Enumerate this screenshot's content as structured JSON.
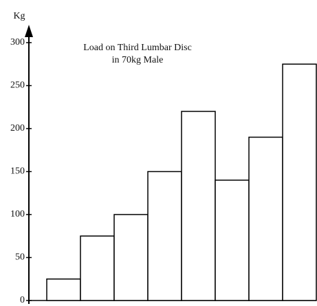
{
  "chart_data": {
    "type": "bar",
    "title": [
      "Load on Third Lumbar Disc",
      "in 70kg Male"
    ],
    "y_label": "Kg",
    "values": [
      25,
      75,
      100,
      150,
      220,
      140,
      190,
      275
    ],
    "color": "#ffffff",
    "ylim": [
      0,
      310
    ],
    "yticks": [
      0,
      50,
      100,
      150,
      200,
      250,
      300
    ],
    "grid": false
  }
}
